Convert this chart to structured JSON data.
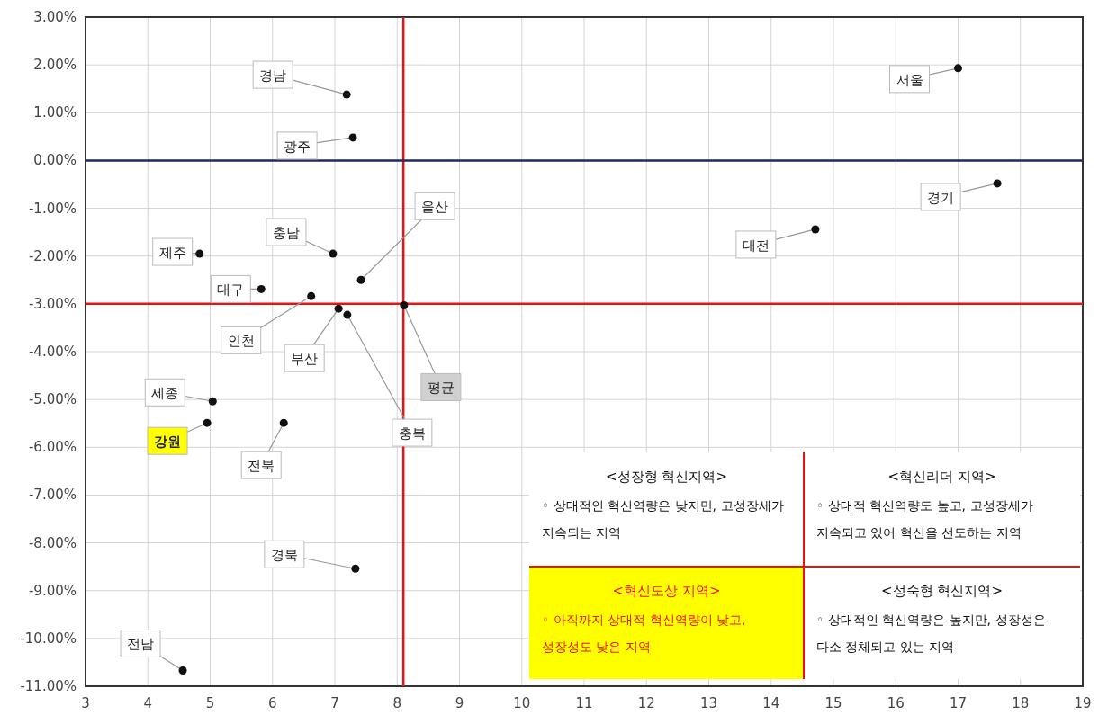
{
  "chart_data": {
    "type": "scatter",
    "color": "#111111",
    "marker": "circle",
    "grid": true,
    "x": [
      17.0,
      17.63,
      14.71,
      7.19,
      7.29,
      7.42,
      6.97,
      4.83,
      5.82,
      6.62,
      7.06,
      7.2,
      8.11,
      5.04,
      4.95,
      6.18,
      7.33,
      4.56
    ],
    "values": [
      1.93,
      -0.48,
      -1.44,
      1.38,
      0.48,
      -2.5,
      -1.95,
      -1.95,
      -2.69,
      -2.84,
      -3.1,
      -3.23,
      -3.03,
      -5.04,
      -5.49,
      -5.49,
      -8.54,
      -10.67
    ],
    "xlim": [
      3,
      19
    ],
    "xticks": [
      3,
      4,
      5,
      6,
      7,
      8,
      9,
      10,
      11,
      12,
      13,
      14,
      15,
      16,
      17,
      18,
      19
    ],
    "ylim": [
      -11,
      3
    ],
    "yticks": [
      {
        "value": 3,
        "label": "3.00%"
      },
      {
        "value": 2,
        "label": "2.00%"
      },
      {
        "value": 1,
        "label": "1.00%"
      },
      {
        "value": 0,
        "label": "0.00%"
      },
      {
        "value": -1,
        "label": "-1.00%"
      },
      {
        "value": -2,
        "label": "-2.00%"
      },
      {
        "value": -3,
        "label": "-3.00%"
      },
      {
        "value": -4,
        "label": "-4.00%"
      },
      {
        "value": -5,
        "label": "-5.00%"
      },
      {
        "value": -6,
        "label": "-6.00%"
      },
      {
        "value": -7,
        "label": "-7.00%"
      },
      {
        "value": -8,
        "label": "-8.00%"
      },
      {
        "value": -9,
        "label": "-9.00%"
      },
      {
        "value": -10,
        "label": "-10.00%"
      },
      {
        "value": -11,
        "label": "-11.00%"
      }
    ],
    "ref_lines": [
      {
        "axis": "x",
        "value": 8.1,
        "color": "#ee1111"
      },
      {
        "axis": "y",
        "value": -3,
        "color": "#ee1111"
      },
      {
        "axis": "y",
        "value": 0,
        "color": "#1f2a5c"
      }
    ],
    "annotations": [
      {
        "text": "서울",
        "x": 17.0,
        "y": 1.93
      },
      {
        "text": "경기",
        "x": 17.63,
        "y": -0.48
      },
      {
        "text": "대전",
        "x": 14.71,
        "y": -1.44
      },
      {
        "text": "경남",
        "x": 7.19,
        "y": 1.38
      },
      {
        "text": "광주",
        "x": 7.29,
        "y": 0.48
      },
      {
        "text": "울산",
        "x": 7.42,
        "y": -2.5
      },
      {
        "text": "충남",
        "x": 6.97,
        "y": -1.95
      },
      {
        "text": "제주",
        "x": 4.83,
        "y": -1.95
      },
      {
        "text": "대구",
        "x": 5.82,
        "y": -2.69
      },
      {
        "text": "인천",
        "x": 6.62,
        "y": -2.84
      },
      {
        "text": "부산",
        "x": 7.06,
        "y": -3.1
      },
      {
        "text": "충북",
        "x": 7.2,
        "y": -3.23
      },
      {
        "text": "평균",
        "x": 8.11,
        "y": -3.03
      },
      {
        "text": "세종",
        "x": 5.04,
        "y": -5.04
      },
      {
        "text": "강원",
        "x": 4.95,
        "y": -5.49
      },
      {
        "text": "전북",
        "x": 6.18,
        "y": -5.49
      },
      {
        "text": "경북",
        "x": 7.33,
        "y": -8.54
      },
      {
        "text": "전남",
        "x": 4.56,
        "y": -10.67
      },
      "<성장형 혁신지역>",
      "◦ 상대적인 혁신역량은 낮지만, 고성장세가 지속되는 지역",
      "<혁신리더 지역>",
      "◦ 상대적 혁신역량도 높고, 고성장세가 지속되고 있어 혁신을 선도하는 지역",
      "<혁신도상 지역>",
      "◦ 아직까지 상대적 혁신역량이 낮고, 성장성도 낮은 지역",
      "<성숙형 혁신지역>",
      "◦ 상대적인 혁신역량은 높지만, 성장성은 다소 정체되고 있는 지역"
    ]
  }
}
